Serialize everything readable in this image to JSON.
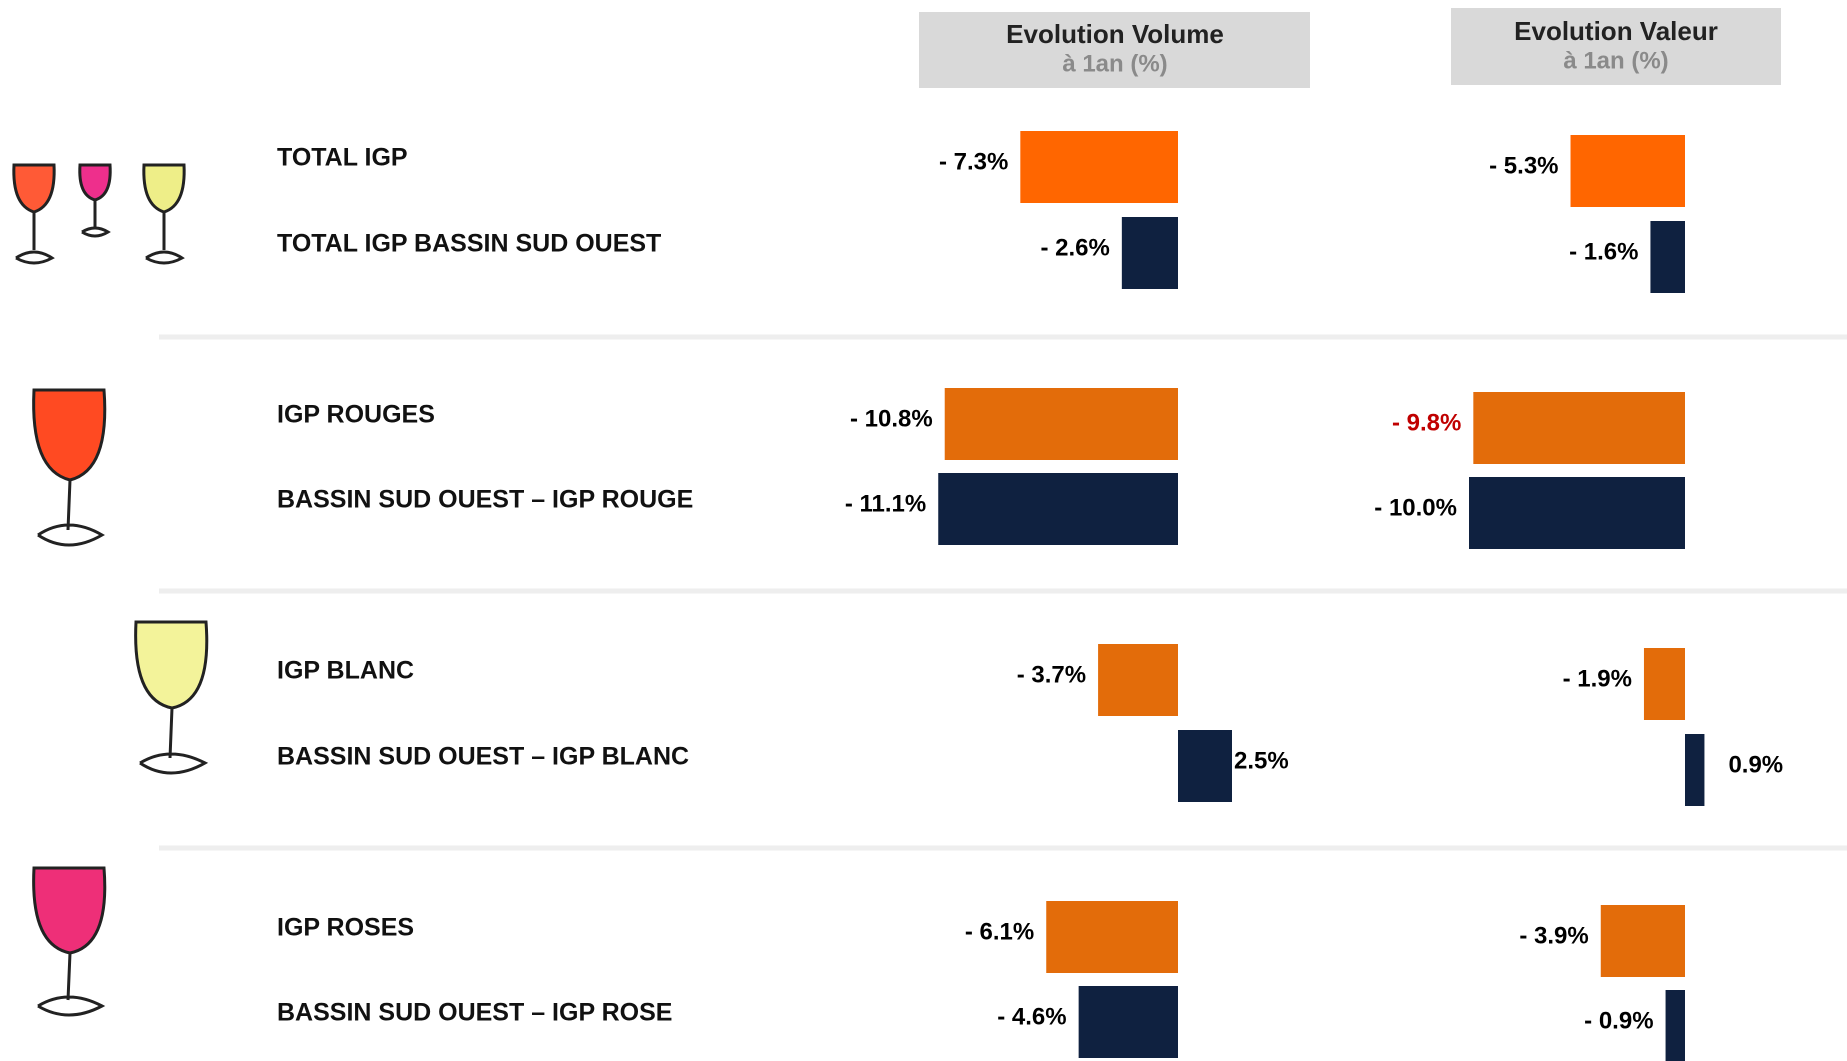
{
  "chart_data": [
    {
      "type": "bar",
      "title": "Evolution Volume",
      "subtitle": "à 1an (%)",
      "categories": [
        "TOTAL IGP",
        "TOTAL IGP BASSIN SUD OUEST",
        "IGP ROUGES",
        "BASSIN SUD OUEST – IGP ROUGE",
        "IGP BLANC",
        "BASSIN SUD OUEST – IGP BLANC",
        "IGP ROSES",
        "BASSIN SUD OUEST – IGP ROSE"
      ],
      "values": [
        -7.3,
        -2.6,
        -10.8,
        -11.1,
        -3.7,
        2.5,
        -6.1,
        -4.6
      ],
      "value_labels": [
        "- 7.3%",
        "- 2.6%",
        "- 10.8%",
        "- 11.1%",
        "- 3.7%",
        "2.5%",
        "- 6.1%",
        "- 4.6%"
      ],
      "colors": [
        "#ff6600",
        "#0f2140",
        "#e36c0a",
        "#0f2140",
        "#e36c0a",
        "#0f2140",
        "#e36c0a",
        "#0f2140"
      ],
      "label_colors": [
        "#000000",
        "#000000",
        "#000000",
        "#000000",
        "#000000",
        "#000000",
        "#000000",
        "#000000"
      ]
    },
    {
      "type": "bar",
      "title": "Evolution Valeur",
      "subtitle": "à 1an (%)",
      "values": [
        -5.3,
        -1.6,
        -9.8,
        -10.0,
        -1.9,
        0.9,
        -3.9,
        -0.9
      ],
      "value_labels": [
        "- 5.3%",
        "- 1.6%",
        "- 9.8%",
        "- 10.0%",
        "- 1.9%",
        "0.9%",
        "- 3.9%",
        "- 0.9%"
      ],
      "colors": [
        "#ff6600",
        "#0f2140",
        "#e36c0a",
        "#0f2140",
        "#e36c0a",
        "#0f2140",
        "#e36c0a",
        "#0f2140"
      ],
      "label_colors": [
        "#000000",
        "#000000",
        "#c00000",
        "#000000",
        "#000000",
        "#000000",
        "#000000",
        "#000000"
      ]
    }
  ]
}
